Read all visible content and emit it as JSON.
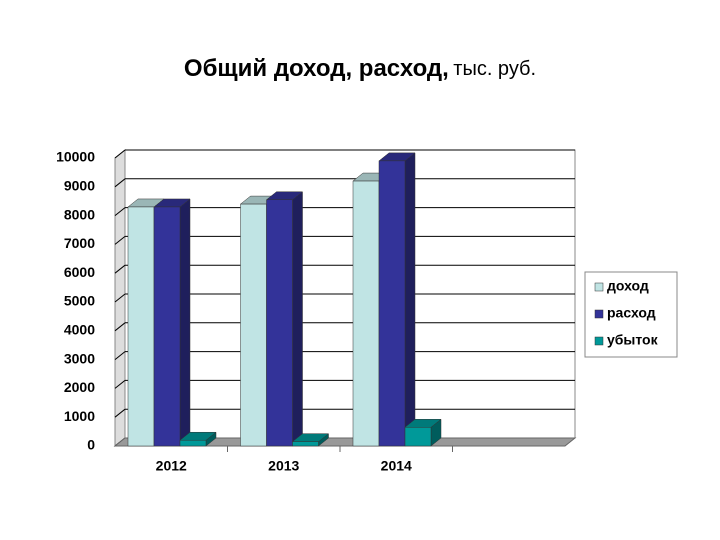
{
  "chart_data": {
    "type": "bar3d",
    "title": "Общий доход, расход,",
    "subtitle": "тыс. руб.",
    "categories": [
      "2012",
      "2013",
      "2014",
      null
    ],
    "series": [
      {
        "name": "доход",
        "color": "#c0e4e4",
        "values": [
          8300,
          8400,
          9200,
          null
        ]
      },
      {
        "name": "расход",
        "color": "#333399",
        "values": [
          8300,
          8550,
          9900,
          null
        ]
      },
      {
        "name": "убыток",
        "color": "#009999",
        "values": [
          200,
          150,
          650,
          null
        ]
      }
    ],
    "ylim": [
      0,
      10000
    ],
    "yticks": [
      0,
      1000,
      2000,
      3000,
      4000,
      5000,
      6000,
      7000,
      8000,
      9000,
      10000
    ],
    "grid": true,
    "legend": "right"
  }
}
